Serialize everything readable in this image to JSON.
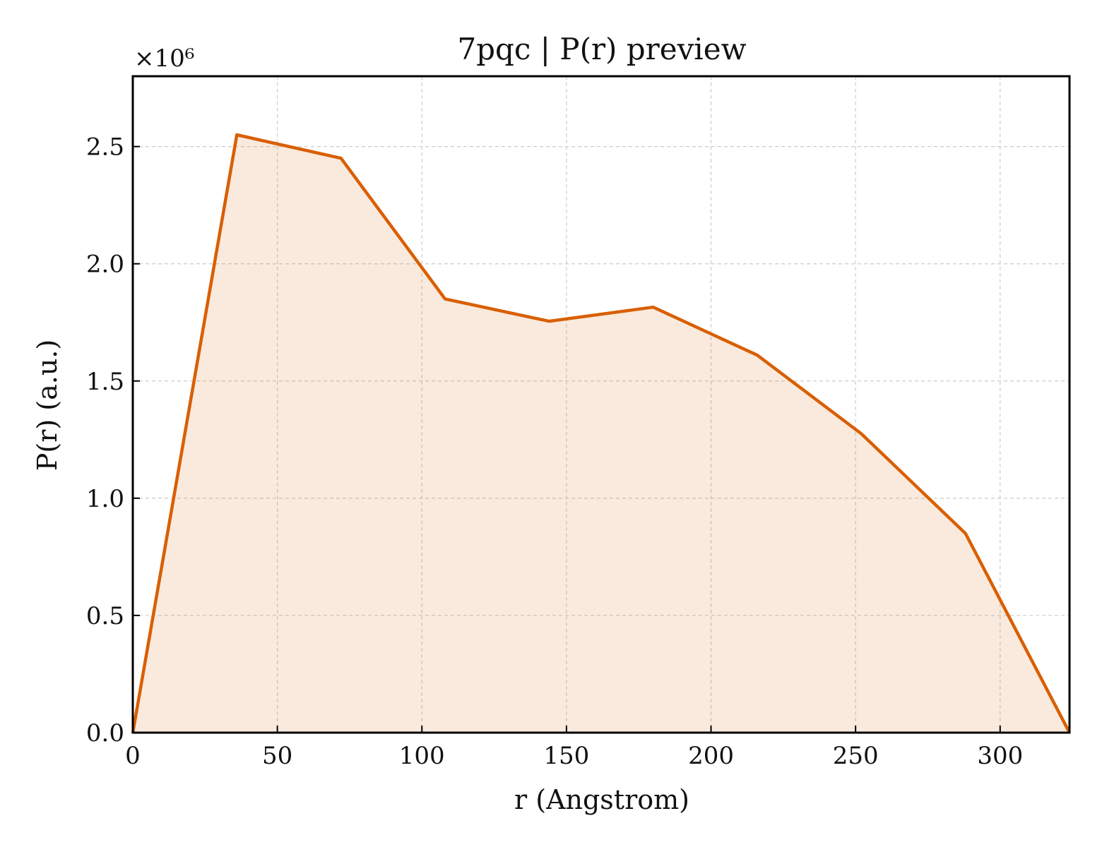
{
  "chart_data": {
    "type": "area",
    "title": "7pqc | P(r) preview",
    "xlabel": "r (Angstrom)",
    "ylabel": "P(r) (a.u.)",
    "y_scale_note": "×10⁶",
    "xlim": [
      0,
      324
    ],
    "ylim": [
      0,
      2.8
    ],
    "xticks": [
      0,
      50,
      100,
      150,
      200,
      250,
      300
    ],
    "yticks": [
      0.0,
      0.5,
      1.0,
      1.5,
      2.0,
      2.5
    ],
    "xtick_labels": [
      "0",
      "50",
      "100",
      "150",
      "200",
      "250",
      "300"
    ],
    "ytick_labels": [
      "0.0",
      "0.5",
      "1.0",
      "1.5",
      "2.0",
      "2.5"
    ],
    "grid": true,
    "series": [
      {
        "x": [
          0,
          36,
          72,
          108,
          144,
          180,
          216,
          252,
          288,
          324
        ],
        "y": [
          0.0,
          2.55,
          2.45,
          1.85,
          1.755,
          1.815,
          1.61,
          1.275,
          0.85,
          0.0
        ],
        "color": "#d95f02"
      }
    ]
  }
}
